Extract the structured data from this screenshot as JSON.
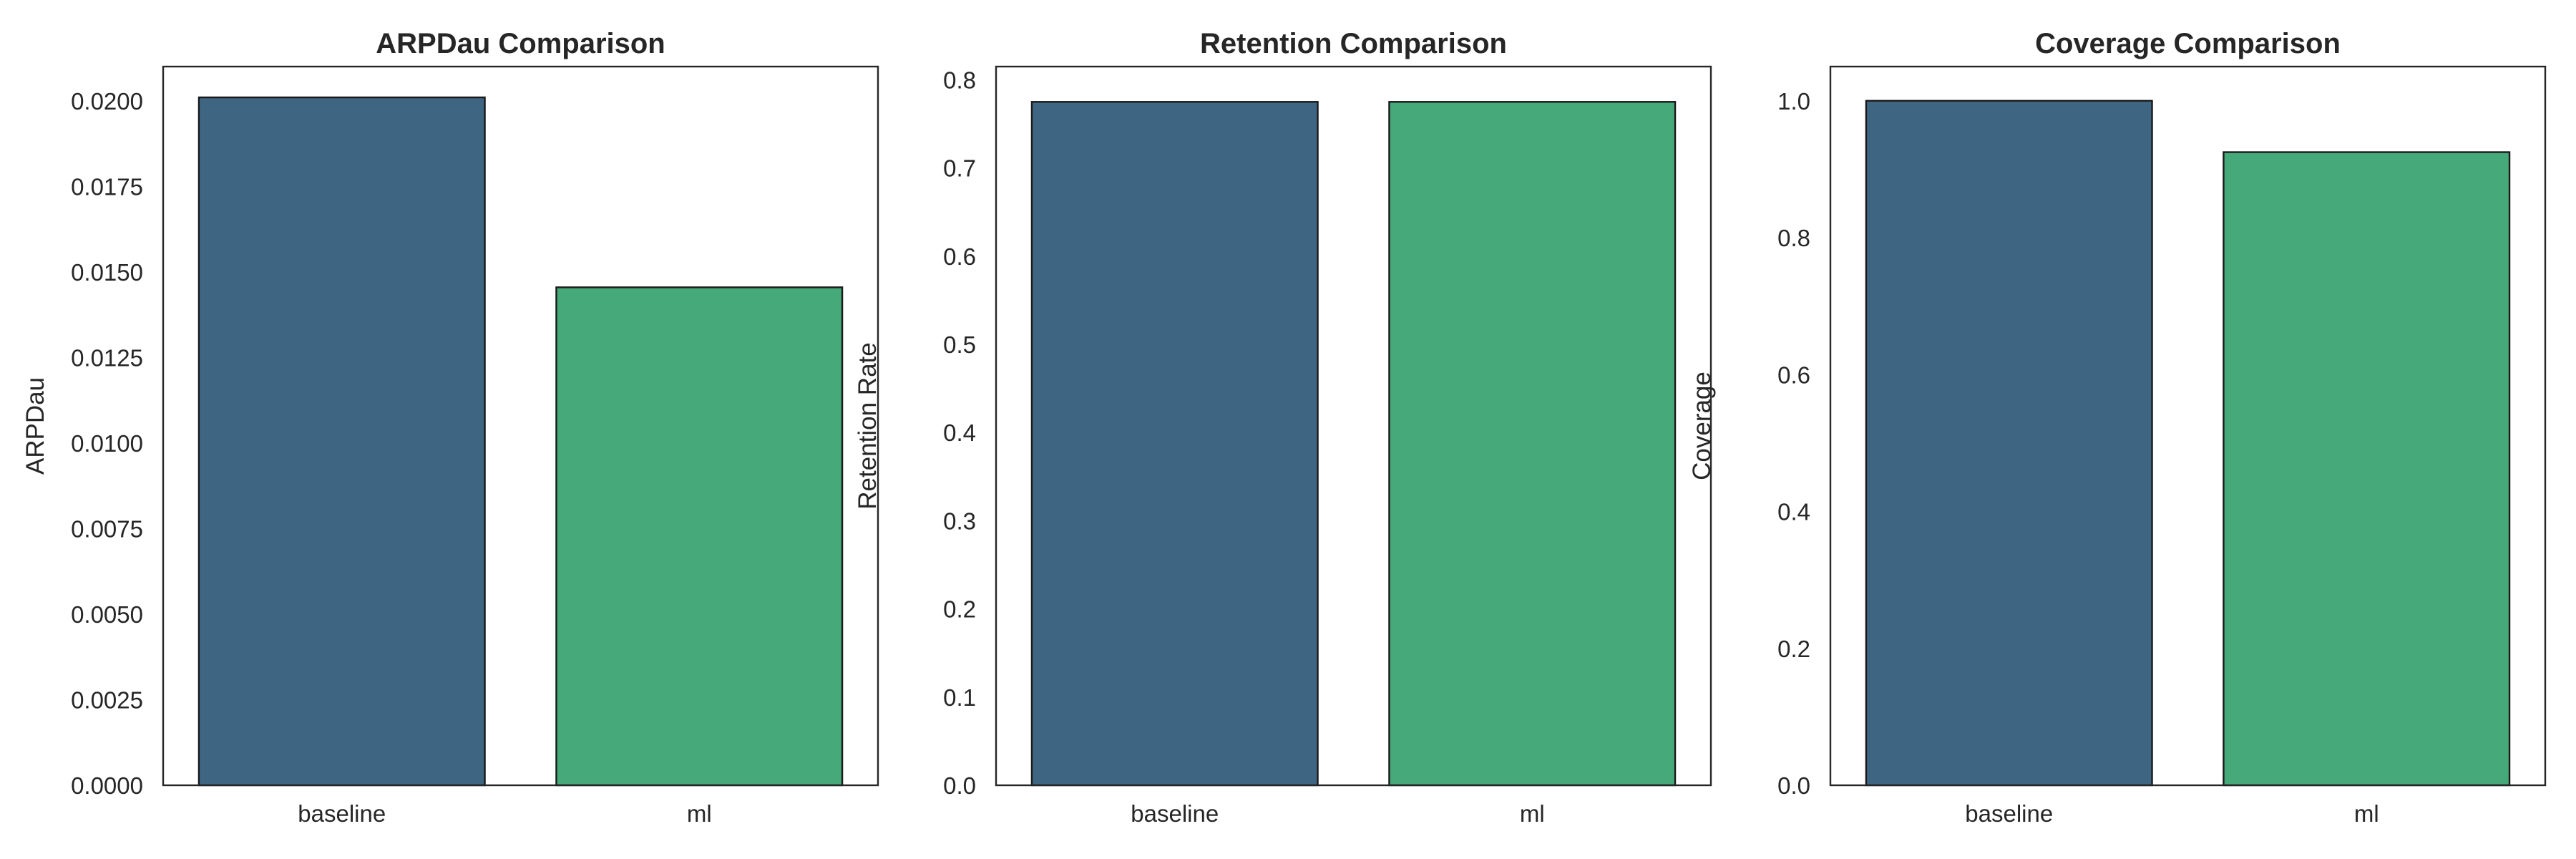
{
  "chart_data": [
    {
      "type": "bar",
      "title": "ARPDau Comparison",
      "xlabel": "",
      "ylabel": "ARPDau",
      "categories": [
        "baseline",
        "ml"
      ],
      "values": [
        0.0201,
        0.01455
      ],
      "ylim": [
        0,
        0.021
      ],
      "yticks": [
        "0.0000",
        "0.0025",
        "0.0050",
        "0.0075",
        "0.0100",
        "0.0125",
        "0.0150",
        "0.0175",
        "0.0200"
      ],
      "colors": [
        "#3e6683",
        "#46a979"
      ],
      "grid": false
    },
    {
      "type": "bar",
      "title": "Retention Comparison",
      "xlabel": "",
      "ylabel": "Retention Rate",
      "categories": [
        "baseline",
        "ml"
      ],
      "values": [
        0.775,
        0.775
      ],
      "ylim": [
        0,
        0.815
      ],
      "yticks": [
        "0.0",
        "0.1",
        "0.2",
        "0.3",
        "0.4",
        "0.5",
        "0.6",
        "0.7",
        "0.8"
      ],
      "colors": [
        "#3e6683",
        "#46a979"
      ],
      "grid": false
    },
    {
      "type": "bar",
      "title": "Coverage Comparison",
      "xlabel": "",
      "ylabel": "Coverage",
      "categories": [
        "baseline",
        "ml"
      ],
      "values": [
        1.0,
        0.925
      ],
      "ylim": [
        0,
        1.05
      ],
      "yticks": [
        "0.0",
        "0.2",
        "0.4",
        "0.6",
        "0.8",
        "1.0"
      ],
      "colors": [
        "#3e6683",
        "#46a979"
      ],
      "grid": false
    }
  ]
}
